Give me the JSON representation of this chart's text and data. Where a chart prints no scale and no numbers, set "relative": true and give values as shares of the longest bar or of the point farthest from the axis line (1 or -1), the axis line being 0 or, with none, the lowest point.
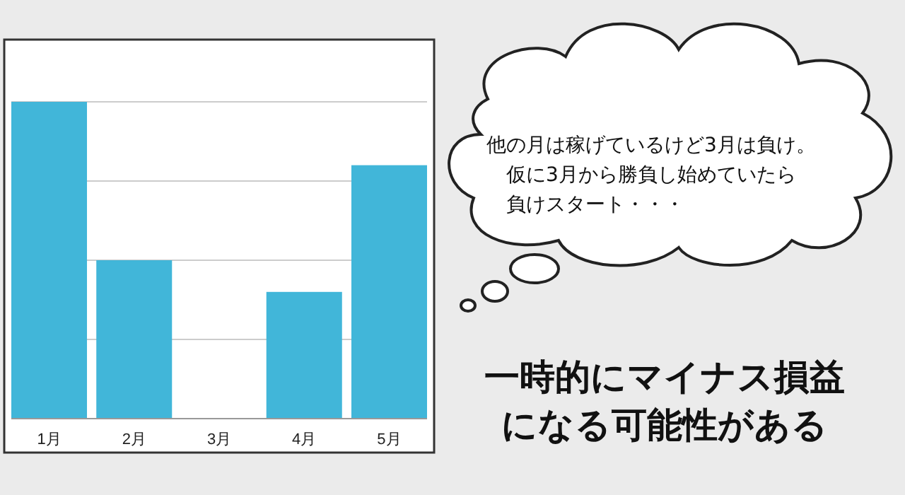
{
  "chart_data": {
    "type": "bar",
    "relative": true,
    "grid": "y",
    "title": "一時的にマイナス損益になる可能性がある",
    "categories": [
      "1月",
      "2月",
      "3月",
      "4月",
      "5月"
    ],
    "values": [
      1,
      0.5,
      0,
      0.4,
      0.8
    ],
    "color": "#41b6d9",
    "annotations": [
      "他の月は稼げているけど3月は負け。",
      "仮に3月から勝負し始めていたら",
      "負けスタート・・・"
    ]
  }
}
